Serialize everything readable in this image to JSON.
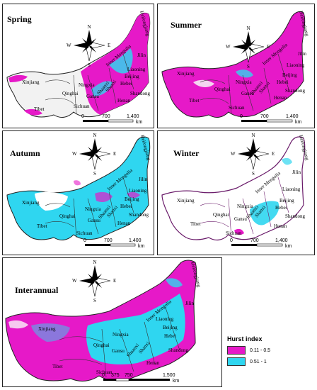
{
  "panels": [
    {
      "title": "Spring",
      "scale": [
        "0",
        "700",
        "1,400"
      ],
      "unit": "km"
    },
    {
      "title": "Summer",
      "scale": [
        "0",
        "700",
        "1,400"
      ],
      "unit": "km"
    },
    {
      "title": "Autumn",
      "scale": [
        "0",
        "700",
        "1,400"
      ],
      "unit": "km"
    },
    {
      "title": "Winter",
      "scale": [
        "0",
        "700",
        "1,400"
      ],
      "unit": "km"
    },
    {
      "title": "Interannual",
      "scale": [
        "0",
        "375",
        "750",
        "1,500"
      ],
      "unit": "km"
    }
  ],
  "provinces": [
    "Xinjiang",
    "Tibet",
    "Qinghai",
    "Sichuan",
    "Gansu",
    "Ningxia",
    "Inner Mongolia",
    "Shaanxi",
    "Shanxi",
    "Henan",
    "Hebei",
    "Beijing",
    "Shandong",
    "Liaoning",
    "Jilin",
    "Heilongjiang"
  ],
  "compass": {
    "n": "N",
    "s": "S",
    "e": "E",
    "w": "W"
  },
  "legend": {
    "title": "Hurst index",
    "items": [
      {
        "label": "0.11 - 0.5",
        "color": "#e619c8"
      },
      {
        "label": "0.51 - 1",
        "color": "#2fd6f0"
      }
    ]
  }
}
